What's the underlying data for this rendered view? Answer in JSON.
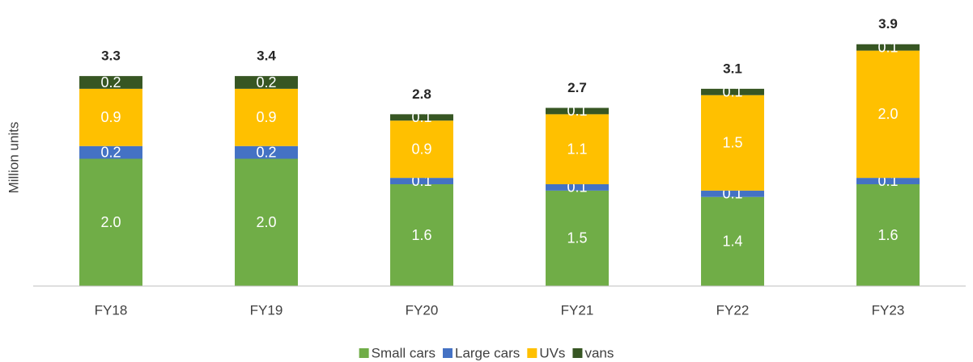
{
  "chart_data": {
    "type": "bar",
    "stacked": true,
    "y_label": "Million units",
    "categories": [
      "FY18",
      "FY19",
      "FY20",
      "FY21",
      "FY22",
      "FY23"
    ],
    "series": [
      {
        "name": "Small cars",
        "color": "#70ad47",
        "values": [
          2.0,
          2.0,
          1.6,
          1.5,
          1.4,
          1.6
        ],
        "value_labels": [
          "2.0",
          "2.0",
          "1.6",
          "1.5",
          "1.4",
          "1.6"
        ]
      },
      {
        "name": "Large cars",
        "color": "#4472c4",
        "values": [
          0.2,
          0.2,
          0.1,
          0.1,
          0.1,
          0.1
        ]
      },
      {
        "name": "UVs",
        "color": "#ffc000",
        "values": [
          0.9,
          0.9,
          0.9,
          1.1,
          1.5,
          2.0
        ],
        "value_labels": [
          "0.9",
          "0.9",
          "0.9",
          "1.1",
          "1.5",
          "2.0"
        ]
      },
      {
        "name": "vans",
        "color": "#375623",
        "values": [
          0.2,
          0.2,
          0.1,
          0.1,
          0.1,
          0.1
        ]
      }
    ],
    "totals": [
      3.3,
      3.4,
      2.8,
      2.7,
      3.1,
      3.9
    ],
    "ylim": [
      0,
      4
    ]
  }
}
